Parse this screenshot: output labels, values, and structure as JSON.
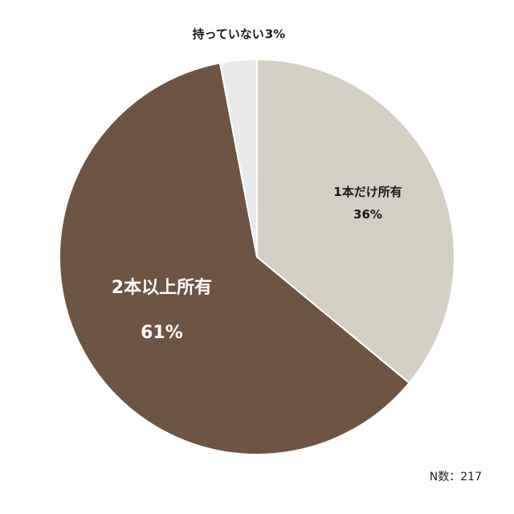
{
  "chart_data": {
    "type": "pie",
    "slices": [
      {
        "label": "1本だけ所有",
        "value": 36,
        "value_label": "36%",
        "color": "#d3cfc2"
      },
      {
        "label": "2本以上所有",
        "value": 61,
        "value_label": "61%",
        "color": "#6e5443"
      },
      {
        "label": "持っていない",
        "value": 3,
        "value_label": "3%",
        "color": "#e8eaeb"
      }
    ],
    "start": "12 o'clock",
    "direction": "clockwise",
    "footnote": "N数：217"
  }
}
